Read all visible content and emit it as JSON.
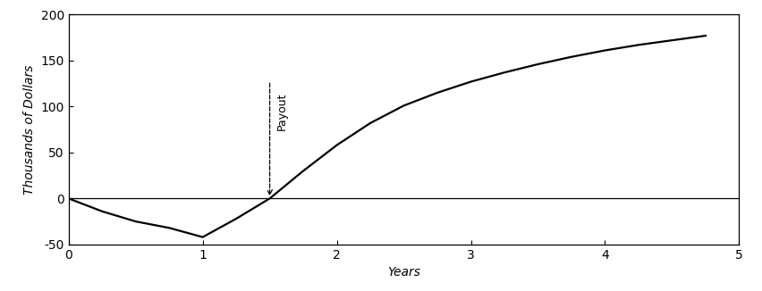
{
  "chart_data": {
    "type": "line",
    "x_label": "Years",
    "y_label": "Thousands of Dollars",
    "x": [
      0,
      0.25,
      0.5,
      0.75,
      1,
      1.25,
      1.5,
      1.75,
      2,
      2.25,
      2.5,
      2.75,
      3,
      3.25,
      3.5,
      3.75,
      4,
      4.25,
      4.5,
      4.75
    ],
    "values": [
      0,
      -14,
      -25,
      -32,
      -42,
      -22,
      0,
      30,
      58,
      82,
      101,
      115,
      127,
      137,
      146,
      154,
      161,
      167,
      172,
      177
    ],
    "color": "#000000",
    "xlim": [
      0,
      5
    ],
    "xticks": [
      0,
      1,
      2,
      3,
      4,
      5
    ],
    "ylim": [
      -50,
      200
    ],
    "yticks": [
      -50,
      0,
      50,
      100,
      150,
      200
    ],
    "reference_line": 0,
    "annotations": [
      {
        "text": "Payout",
        "x": 1.5,
        "y": 0
      }
    ]
  }
}
